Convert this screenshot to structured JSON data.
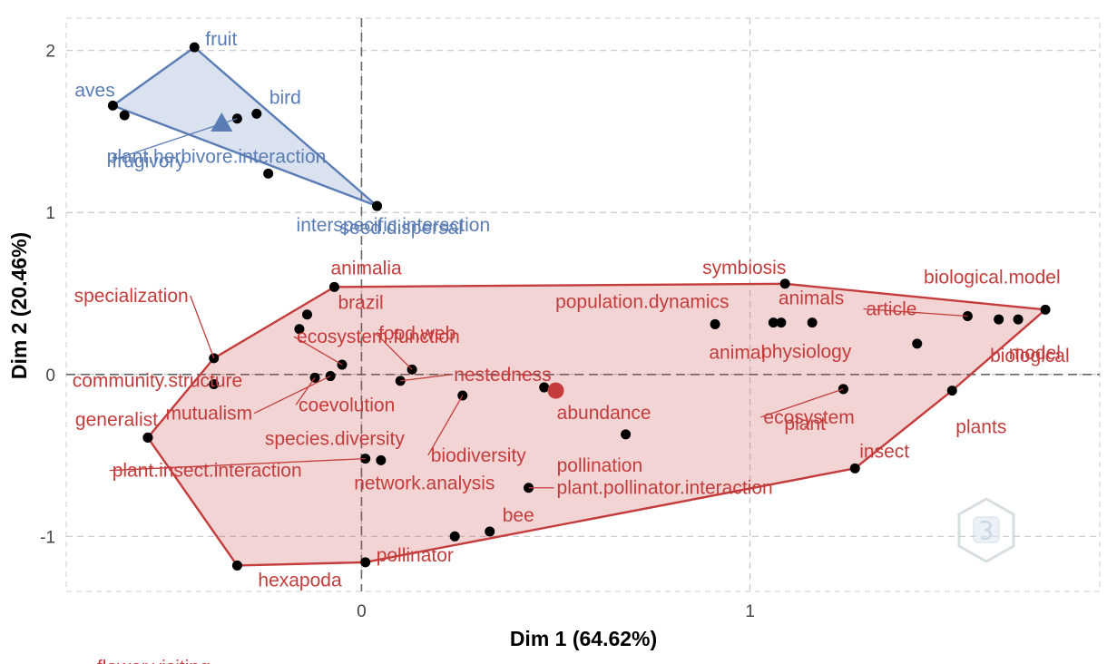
{
  "chart_data": {
    "type": "scatter",
    "title": "",
    "xlabel": "Dim 1 (64.62%)",
    "ylabel": "Dim 2 (20.46%)",
    "xlim": [
      -0.76,
      1.9
    ],
    "ylim": [
      -1.34,
      2.2
    ],
    "xticks": [
      0,
      1
    ],
    "yticks": [
      -1,
      0,
      1,
      2
    ],
    "grid": true,
    "legend": "none",
    "colors": {
      "cluster1": "#c43c3c",
      "cluster2": "#5b7db5"
    },
    "clusters": [
      {
        "id": "cluster1",
        "centroid": [
          0.5,
          -0.1
        ],
        "hull": [
          [
            -0.07,
            0.54
          ],
          [
            1.09,
            0.56
          ],
          [
            1.76,
            0.4
          ],
          [
            1.52,
            -0.1
          ],
          [
            1.27,
            -0.58
          ],
          [
            0.01,
            -1.16
          ],
          [
            -0.32,
            -1.18
          ],
          [
            -0.55,
            -0.39
          ],
          [
            -0.38,
            0.1
          ]
        ],
        "points": [
          {
            "label": "animalia",
            "x": -0.07,
            "y": 0.54
          },
          {
            "label": "brazil",
            "x": -0.14,
            "y": 0.37
          },
          {
            "label": "",
            "x": -0.16,
            "y": 0.28
          },
          {
            "label": "specialization",
            "x": -0.38,
            "y": 0.1
          },
          {
            "label": "ecosystem.function",
            "x": -0.05,
            "y": 0.06
          },
          {
            "label": "community.structure",
            "x": -0.38,
            "y": -0.06
          },
          {
            "label": "mutualism",
            "x": -0.08,
            "y": -0.01
          },
          {
            "label": "coevolution",
            "x": -0.12,
            "y": -0.02
          },
          {
            "label": "food.web",
            "x": 0.13,
            "y": 0.03
          },
          {
            "label": "nestedness",
            "x": 0.1,
            "y": -0.04
          },
          {
            "label": "biodiversity",
            "x": 0.26,
            "y": -0.13
          },
          {
            "label": "abundance",
            "x": 0.47,
            "y": -0.08
          },
          {
            "label": "generalist",
            "x": -0.55,
            "y": -0.39
          },
          {
            "label": "species.diversity",
            "x": 0.05,
            "y": -0.53
          },
          {
            "label": "plant.insect.interaction",
            "x": 0.01,
            "y": -0.52
          },
          {
            "label": "pollination",
            "x": 0.68,
            "y": -0.37
          },
          {
            "label": "plant.pollinator.interaction",
            "x": 0.43,
            "y": -0.7
          },
          {
            "label": "network.analysis",
            "x": 0.24,
            "y": -1.0
          },
          {
            "label": "bee",
            "x": 0.33,
            "y": -0.97
          },
          {
            "label": "pollinator",
            "x": 0.01,
            "y": -1.16
          },
          {
            "label": "hexapoda",
            "x": -0.32,
            "y": -1.18
          },
          {
            "label": "flower.visiting",
            "x": -0.55,
            "y": -0.39
          },
          {
            "label": "symbiosis",
            "x": 1.09,
            "y": 0.56
          },
          {
            "label": "population.dynamics",
            "x": 0.91,
            "y": 0.31
          },
          {
            "label": "animal",
            "x": 1.06,
            "y": 0.32
          },
          {
            "label": "animals",
            "x": 1.08,
            "y": 0.32
          },
          {
            "label": "physiology",
            "x": 1.16,
            "y": 0.32
          },
          {
            "label": "article",
            "x": 1.56,
            "y": 0.36
          },
          {
            "label": "",
            "x": 1.64,
            "y": 0.34
          },
          {
            "label": "biological",
            "x": 1.69,
            "y": 0.34
          },
          {
            "label": "biological.model",
            "x": 1.76,
            "y": 0.4
          },
          {
            "label": "model",
            "x": 1.43,
            "y": 0.19
          },
          {
            "label": "ecosystem",
            "x": 1.24,
            "y": -0.09
          },
          {
            "label": "plant",
            "x": 1.24,
            "y": -0.09
          },
          {
            "label": "plants",
            "x": 1.52,
            "y": -0.1
          },
          {
            "label": "insect",
            "x": 1.27,
            "y": -0.58
          }
        ]
      },
      {
        "id": "cluster2",
        "centroid": [
          -0.36,
          1.55
        ],
        "hull": [
          [
            -0.43,
            2.02
          ],
          [
            0.04,
            1.04
          ],
          [
            -0.64,
            1.66
          ]
        ],
        "points": [
          {
            "label": "fruit",
            "x": -0.43,
            "y": 2.02
          },
          {
            "label": "aves",
            "x": -0.64,
            "y": 1.66
          },
          {
            "label": "",
            "x": -0.61,
            "y": 1.6
          },
          {
            "label": "bird",
            "x": -0.27,
            "y": 1.61
          },
          {
            "label": "frugivory",
            "x": -0.32,
            "y": 1.58
          },
          {
            "label": "plant.herbivore.interaction",
            "x": -0.24,
            "y": 1.24
          },
          {
            "label": "seed.dispersal",
            "x": 0.04,
            "y": 1.04
          },
          {
            "label": "interspecific.interaction",
            "x": 0.04,
            "y": 1.04
          }
        ]
      }
    ]
  }
}
